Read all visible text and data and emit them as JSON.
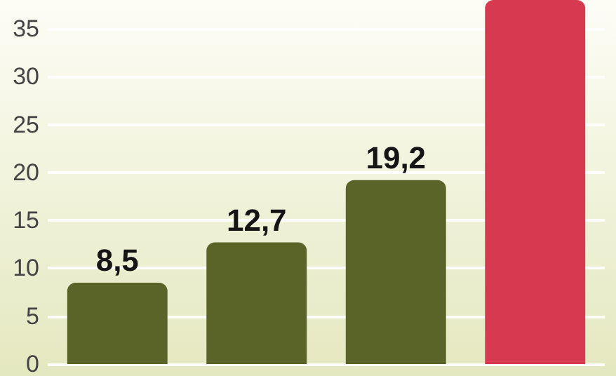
{
  "chart_data": {
    "type": "bar",
    "categories": [
      null,
      null,
      null,
      null
    ],
    "values": [
      8.5,
      12.7,
      19.2,
      38
    ],
    "colors": [
      "#5a6428",
      "#5a6428",
      "#5a6428",
      "#d63a50"
    ],
    "value_labels": [
      "8,5",
      "12,7",
      "19,2",
      null
    ],
    "ylim": [
      0,
      38
    ],
    "yticks": [
      0,
      5,
      10,
      15,
      20,
      25,
      30,
      35
    ],
    "grid": "y"
  }
}
